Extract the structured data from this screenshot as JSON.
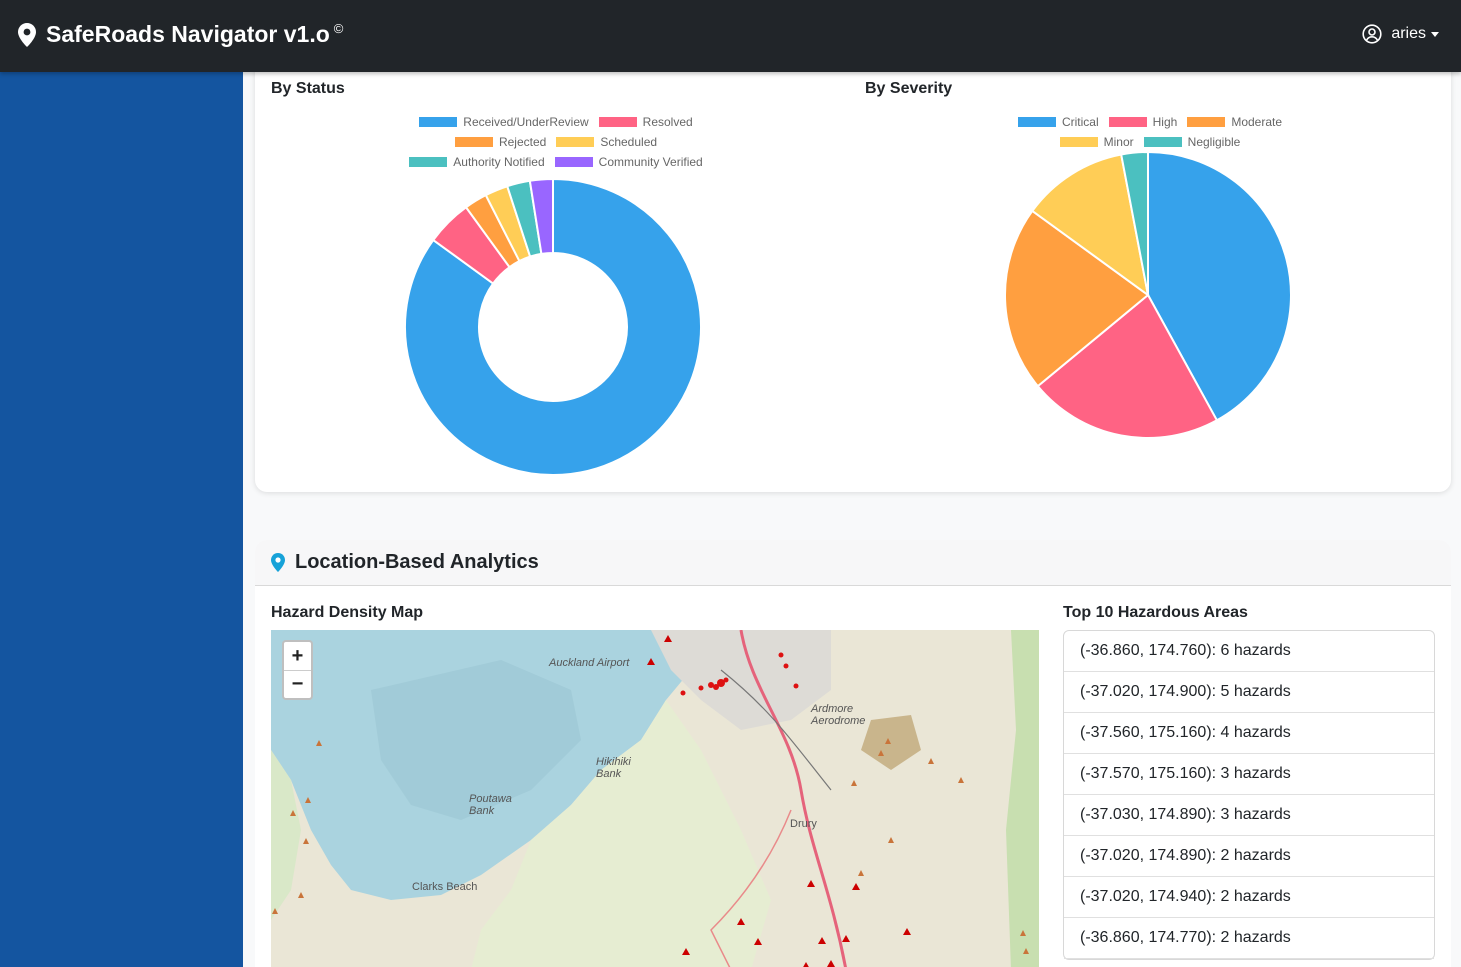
{
  "app": {
    "title": "SafeRoads Navigator v1.o",
    "copyright_mark": "©",
    "user_name": "aries"
  },
  "status_section": {
    "title": "By Status",
    "chart_data": {
      "type": "pie",
      "variant": "doughnut",
      "categories": [
        "Received/UnderReview",
        "Resolved",
        "Rejected",
        "Scheduled",
        "Authority Notified",
        "Community Verified"
      ],
      "values": [
        85,
        5,
        2.5,
        2.5,
        2.5,
        2.5
      ],
      "colors": [
        "#36a2eb",
        "#ff6384",
        "#ff9f40",
        "#ffcd56",
        "#4bc0c0",
        "#9966ff"
      ],
      "legend_rows": [
        [
          0,
          1
        ],
        [
          2,
          3
        ],
        [
          4,
          5
        ]
      ],
      "legend_position": "top"
    }
  },
  "severity_section": {
    "title": "By Severity",
    "chart_data": {
      "type": "pie",
      "categories": [
        "Critical",
        "High",
        "Moderate",
        "Minor",
        "Negligible"
      ],
      "values": [
        42,
        22,
        21,
        12,
        3
      ],
      "colors": [
        "#36a2eb",
        "#ff6384",
        "#ff9f40",
        "#ffcd56",
        "#4bc0c0"
      ],
      "legend_rows": [
        [
          0,
          1,
          2
        ],
        [
          3,
          4
        ]
      ],
      "legend_position": "top"
    }
  },
  "location_section": {
    "title": "Location-Based Analytics",
    "map_title": "Hazard Density Map",
    "zoom_in": "+",
    "zoom_out": "−",
    "map_labels": [
      "Auckland Airport",
      "Ardmore Aerodrome",
      "Hikihiki Bank",
      "Poutawa Bank",
      "Drury",
      "Clarks Beach"
    ],
    "list_title": "Top 10 Hazardous Areas",
    "areas": [
      "(-36.860, 174.760): 6 hazards",
      "(-37.020, 174.900): 5 hazards",
      "(-37.560, 175.160): 4 hazards",
      "(-37.570, 175.160): 3 hazards",
      "(-37.030, 174.890): 3 hazards",
      "(-37.020, 174.890): 2 hazards",
      "(-37.020, 174.940): 2 hazards",
      "(-36.860, 174.770): 2 hazards"
    ]
  }
}
